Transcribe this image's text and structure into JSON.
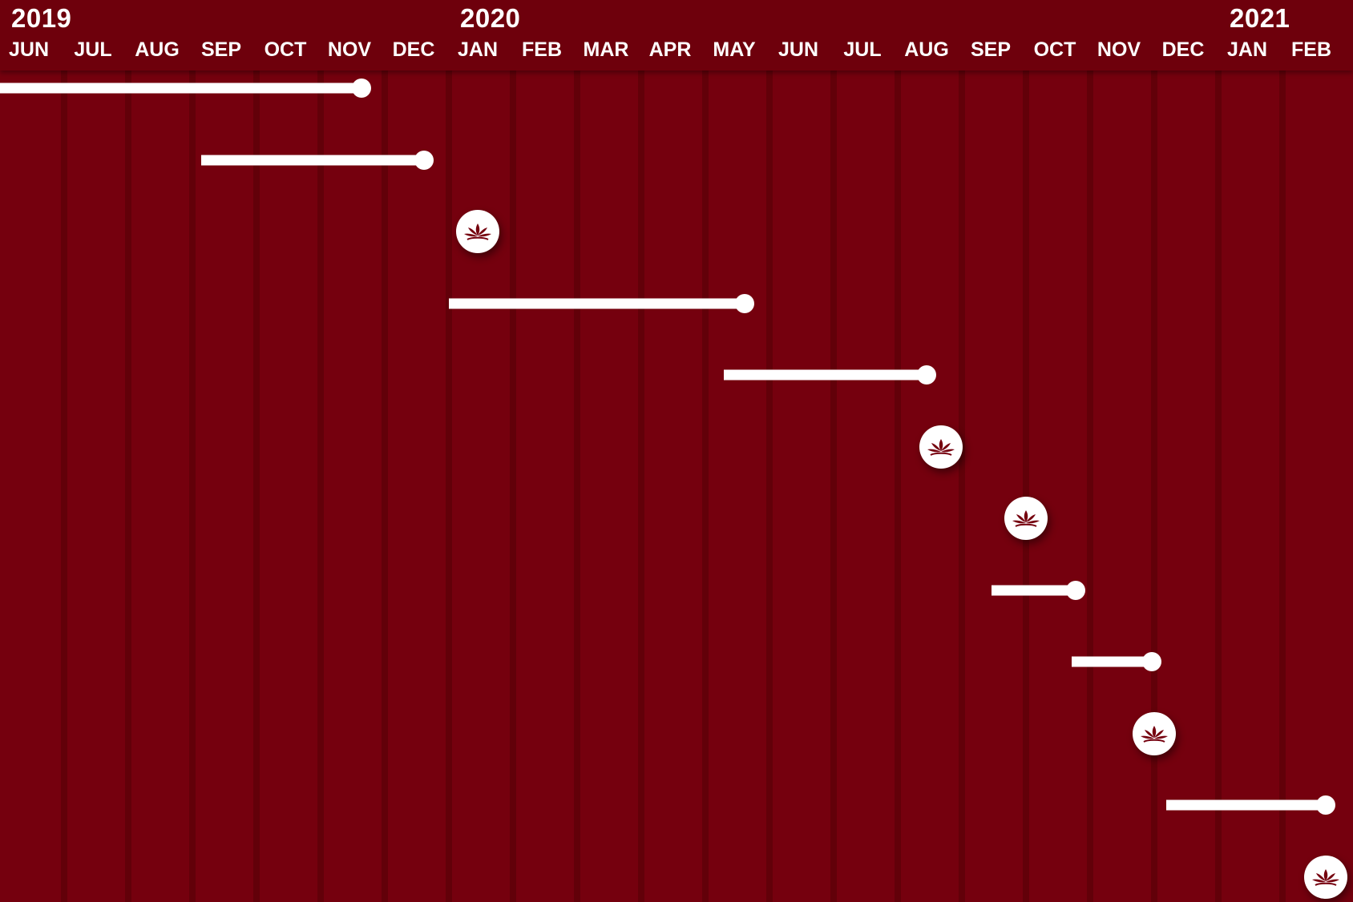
{
  "colors": {
    "background": "#75000e",
    "header": "#6e000c",
    "divider": "#620009",
    "mark": "#ffffff",
    "icon": "#75000e"
  },
  "axis": {
    "years": [
      {
        "label": "2019",
        "start": "2019-06"
      },
      {
        "label": "2020",
        "start": "2020-01"
      },
      {
        "label": "2021",
        "start": "2021-01"
      }
    ],
    "months": [
      {
        "label": "JUN",
        "date": "2019-06"
      },
      {
        "label": "JUL",
        "date": "2019-07"
      },
      {
        "label": "AUG",
        "date": "2019-08"
      },
      {
        "label": "SEP",
        "date": "2019-09"
      },
      {
        "label": "OCT",
        "date": "2019-10"
      },
      {
        "label": "NOV",
        "date": "2019-11"
      },
      {
        "label": "DEC",
        "date": "2019-12"
      },
      {
        "label": "JAN",
        "date": "2020-01"
      },
      {
        "label": "FEB",
        "date": "2020-02"
      },
      {
        "label": "MAR",
        "date": "2020-03"
      },
      {
        "label": "APR",
        "date": "2020-04"
      },
      {
        "label": "MAY",
        "date": "2020-05"
      },
      {
        "label": "JUN",
        "date": "2020-06"
      },
      {
        "label": "JUL",
        "date": "2020-07"
      },
      {
        "label": "AUG",
        "date": "2020-08"
      },
      {
        "label": "SEP",
        "date": "2020-09"
      },
      {
        "label": "OCT",
        "date": "2020-10"
      },
      {
        "label": "NOV",
        "date": "2020-11"
      },
      {
        "label": "DEC",
        "date": "2020-12"
      },
      {
        "label": "JAN",
        "date": "2021-01"
      },
      {
        "label": "FEB",
        "date": "2021-02"
      }
    ]
  },
  "items": [
    {
      "type": "bar",
      "start": "2019-06-01",
      "end": "2019-11-20"
    },
    {
      "type": "bar",
      "start": "2019-09-05",
      "end": "2019-12-20"
    },
    {
      "type": "milestone",
      "date": "2020-01-15",
      "icon": "lotus-icon"
    },
    {
      "type": "bar",
      "start": "2020-01-01",
      "end": "2020-05-20"
    },
    {
      "type": "bar",
      "start": "2020-05-10",
      "end": "2020-08-15"
    },
    {
      "type": "milestone",
      "date": "2020-08-22",
      "icon": "lotus-icon"
    },
    {
      "type": "milestone",
      "date": "2020-10-01",
      "icon": "lotus-icon"
    },
    {
      "type": "bar",
      "start": "2020-09-15",
      "end": "2020-10-25"
    },
    {
      "type": "bar",
      "start": "2020-10-23",
      "end": "2020-11-30"
    },
    {
      "type": "milestone",
      "date": "2020-12-01",
      "icon": "lotus-icon"
    },
    {
      "type": "bar",
      "start": "2020-12-07",
      "end": "2021-02-20"
    },
    {
      "type": "milestone",
      "date": "2021-02-20",
      "icon": "lotus-icon"
    }
  ]
}
